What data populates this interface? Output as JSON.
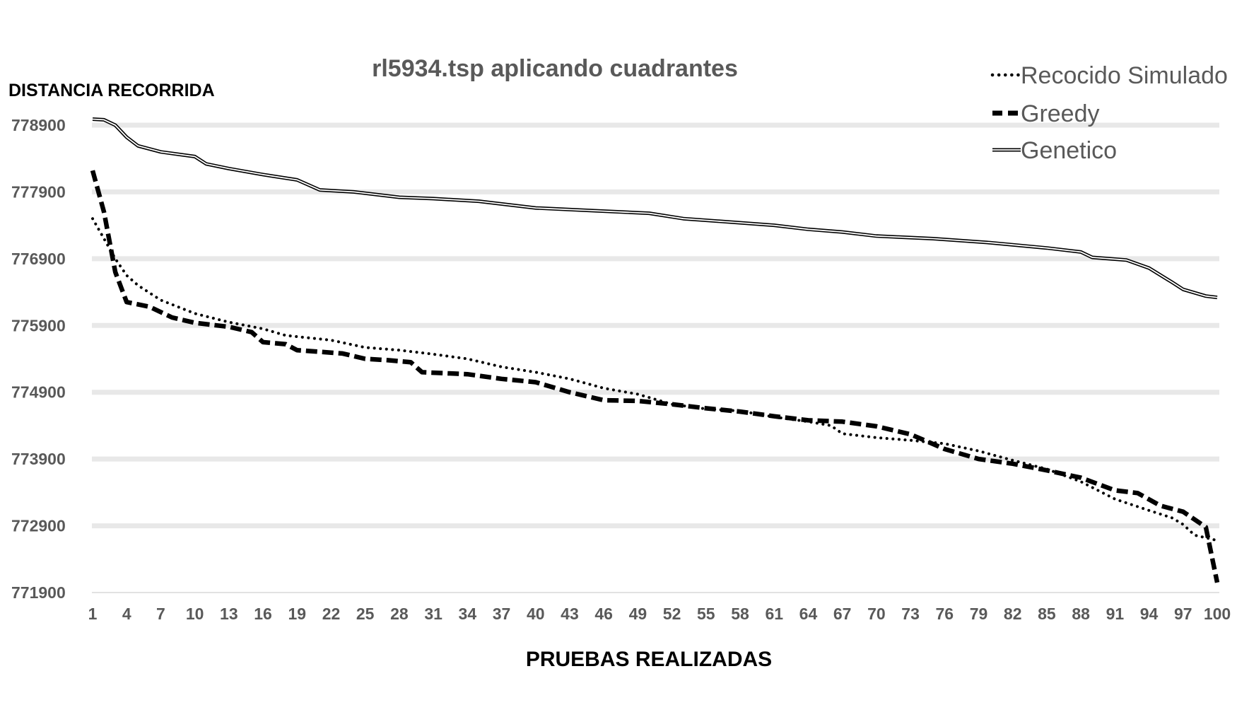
{
  "chart_data": {
    "type": "line",
    "title": "rl5934.tsp aplicando cuadrantes",
    "ylabel": "DISTANCIA RECORRIDA",
    "xlabel": "PRUEBAS REALIZADAS",
    "ylim": [
      771900,
      778900
    ],
    "yticks": [
      778900,
      777900,
      776900,
      775900,
      774900,
      773900,
      772900,
      771900
    ],
    "xlim": [
      1,
      100
    ],
    "xticks": [
      1,
      4,
      7,
      10,
      13,
      16,
      19,
      22,
      25,
      28,
      31,
      34,
      37,
      40,
      43,
      46,
      49,
      52,
      55,
      58,
      61,
      64,
      67,
      70,
      73,
      76,
      79,
      82,
      85,
      88,
      91,
      94,
      97,
      100
    ],
    "grid": true,
    "legend": "top-right",
    "series": [
      {
        "name": "Recocido Simulado",
        "style": "dotted",
        "points": [
          [
            1,
            777500
          ],
          [
            2,
            777200
          ],
          [
            3,
            776900
          ],
          [
            4,
            776650
          ],
          [
            5,
            776500
          ],
          [
            7,
            776280
          ],
          [
            10,
            776080
          ],
          [
            13,
            775950
          ],
          [
            16,
            775850
          ],
          [
            18,
            775750
          ],
          [
            22,
            775680
          ],
          [
            25,
            775570
          ],
          [
            28,
            775530
          ],
          [
            31,
            775470
          ],
          [
            34,
            775400
          ],
          [
            37,
            775280
          ],
          [
            40,
            775200
          ],
          [
            43,
            775100
          ],
          [
            46,
            774960
          ],
          [
            49,
            774870
          ],
          [
            52,
            774720
          ],
          [
            55,
            774650
          ],
          [
            58,
            774620
          ],
          [
            61,
            774530
          ],
          [
            64,
            774460
          ],
          [
            66,
            774400
          ],
          [
            67,
            774280
          ],
          [
            70,
            774220
          ],
          [
            73,
            774180
          ],
          [
            76,
            774130
          ],
          [
            79,
            774020
          ],
          [
            82,
            773880
          ],
          [
            85,
            773750
          ],
          [
            88,
            773560
          ],
          [
            91,
            773300
          ],
          [
            94,
            773130
          ],
          [
            96,
            773020
          ],
          [
            97,
            772920
          ],
          [
            98,
            772760
          ],
          [
            100,
            772680
          ]
        ]
      },
      {
        "name": "Greedy",
        "style": "dashed",
        "points": [
          [
            1,
            778220
          ],
          [
            2,
            777600
          ],
          [
            3,
            776700
          ],
          [
            4,
            776250
          ],
          [
            6,
            776180
          ],
          [
            8,
            776020
          ],
          [
            10,
            775940
          ],
          [
            13,
            775880
          ],
          [
            15,
            775800
          ],
          [
            16,
            775650
          ],
          [
            18,
            775620
          ],
          [
            19,
            775530
          ],
          [
            23,
            775480
          ],
          [
            25,
            775400
          ],
          [
            27,
            775380
          ],
          [
            29,
            775350
          ],
          [
            30,
            775200
          ],
          [
            34,
            775170
          ],
          [
            37,
            775100
          ],
          [
            40,
            775050
          ],
          [
            43,
            774900
          ],
          [
            46,
            774780
          ],
          [
            49,
            774770
          ],
          [
            52,
            774720
          ],
          [
            55,
            774660
          ],
          [
            58,
            774610
          ],
          [
            61,
            774540
          ],
          [
            64,
            774480
          ],
          [
            67,
            774460
          ],
          [
            70,
            774390
          ],
          [
            73,
            774270
          ],
          [
            76,
            774050
          ],
          [
            79,
            773900
          ],
          [
            82,
            773830
          ],
          [
            85,
            773730
          ],
          [
            88,
            773620
          ],
          [
            91,
            773430
          ],
          [
            93,
            773390
          ],
          [
            95,
            773200
          ],
          [
            97,
            773110
          ],
          [
            99,
            772880
          ],
          [
            100,
            772050
          ]
        ]
      },
      {
        "name": "Genetico",
        "style": "double",
        "points": [
          [
            1,
            778990
          ],
          [
            2,
            778980
          ],
          [
            3,
            778900
          ],
          [
            4,
            778720
          ],
          [
            5,
            778590
          ],
          [
            7,
            778500
          ],
          [
            10,
            778430
          ],
          [
            11,
            778320
          ],
          [
            13,
            778250
          ],
          [
            16,
            778160
          ],
          [
            19,
            778080
          ],
          [
            21,
            777930
          ],
          [
            24,
            777900
          ],
          [
            28,
            777820
          ],
          [
            31,
            777800
          ],
          [
            35,
            777760
          ],
          [
            40,
            777660
          ],
          [
            45,
            777620
          ],
          [
            50,
            777580
          ],
          [
            53,
            777500
          ],
          [
            57,
            777450
          ],
          [
            61,
            777400
          ],
          [
            64,
            777340
          ],
          [
            67,
            777300
          ],
          [
            70,
            777240
          ],
          [
            75,
            777200
          ],
          [
            80,
            777140
          ],
          [
            85,
            777060
          ],
          [
            88,
            777000
          ],
          [
            89,
            776920
          ],
          [
            92,
            776880
          ],
          [
            94,
            776760
          ],
          [
            96,
            776550
          ],
          [
            97,
            776440
          ],
          [
            99,
            776340
          ],
          [
            100,
            776320
          ]
        ]
      }
    ]
  }
}
